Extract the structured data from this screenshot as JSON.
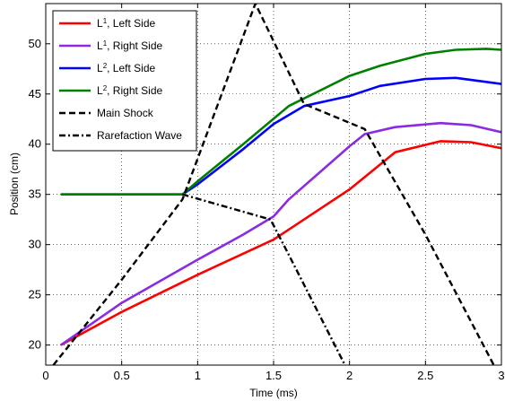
{
  "chart_data": {
    "type": "line",
    "title": "",
    "xlabel": "Time (ms)",
    "ylabel": "Position (cm)",
    "xlim": [
      0,
      3
    ],
    "ylim": [
      18,
      54
    ],
    "xticks": [
      0,
      0.5,
      1,
      1.5,
      2,
      2.5,
      3
    ],
    "xtick_labels": [
      "0",
      "0.5",
      "1",
      "1.5",
      "2",
      "2.5",
      "3"
    ],
    "yticks": [
      20,
      25,
      30,
      35,
      40,
      45,
      50
    ],
    "ytick_labels": [
      "20",
      "25",
      "30",
      "35",
      "40",
      "45",
      "50"
    ],
    "grid": true,
    "legend_position": "top-left",
    "series": [
      {
        "name": "L1, Left Side",
        "legend": {
          "main": "L",
          "sub": "1",
          "rest": ", Left Side"
        },
        "color": "#ff0000",
        "style": "solid",
        "x": [
          0.1,
          0.5,
          1.0,
          1.5,
          1.6,
          2.0,
          2.3,
          2.6,
          2.8,
          3.0
        ],
        "y": [
          20.0,
          23.3,
          27.0,
          30.5,
          31.5,
          35.5,
          39.2,
          40.3,
          40.2,
          39.6
        ]
      },
      {
        "name": "L1, Right Side",
        "legend": {
          "main": "L",
          "sub": "1",
          "rest": ", Right Side"
        },
        "color": "#8a2be2",
        "style": "solid",
        "x": [
          0.1,
          0.5,
          1.0,
          1.3,
          1.5,
          1.6,
          2.0,
          2.1,
          2.3,
          2.6,
          2.8,
          3.0
        ],
        "y": [
          20.0,
          24.2,
          28.5,
          31.0,
          32.8,
          34.5,
          39.8,
          41.0,
          41.7,
          42.1,
          41.9,
          41.2
        ]
      },
      {
        "name": "L2, Left Side",
        "legend": {
          "main": "L",
          "sub": "2",
          "rest": ", Left Side"
        },
        "color": "#0000ff",
        "style": "solid",
        "x": [
          0.1,
          0.9,
          1.0,
          1.3,
          1.5,
          1.7,
          2.0,
          2.2,
          2.5,
          2.7,
          3.0
        ],
        "y": [
          35.0,
          35.0,
          36.0,
          39.5,
          42.0,
          43.8,
          44.8,
          45.8,
          46.5,
          46.6,
          46.0
        ]
      },
      {
        "name": "L2, Right Side",
        "legend": {
          "main": "L",
          "sub": "2",
          "rest": ", Right Side"
        },
        "color": "#008000",
        "style": "solid",
        "x": [
          0.1,
          0.9,
          1.0,
          1.3,
          1.6,
          2.0,
          2.2,
          2.5,
          2.7,
          2.9,
          3.0
        ],
        "y": [
          35.0,
          35.0,
          36.3,
          40.0,
          43.8,
          46.8,
          47.8,
          49.0,
          49.4,
          49.5,
          49.4
        ]
      },
      {
        "name": "Main Shock",
        "legend": {
          "main": "Main Shock",
          "sub": "",
          "rest": ""
        },
        "color": "#000000",
        "style": "dashed",
        "x": [
          0.05,
          0.5,
          0.9,
          1.38,
          1.7,
          2.1,
          2.5,
          2.95
        ],
        "y": [
          18.0,
          26.5,
          34.5,
          54.0,
          44.0,
          41.5,
          31.0,
          18.0
        ]
      },
      {
        "name": "Rarefaction Wave",
        "legend": {
          "main": "Rarefaction Wave",
          "sub": "",
          "rest": ""
        },
        "color": "#000000",
        "style": "dashdot",
        "x": [
          0.9,
          1.48,
          1.6,
          1.97
        ],
        "y": [
          35.0,
          32.5,
          29.0,
          18.0
        ]
      }
    ]
  }
}
